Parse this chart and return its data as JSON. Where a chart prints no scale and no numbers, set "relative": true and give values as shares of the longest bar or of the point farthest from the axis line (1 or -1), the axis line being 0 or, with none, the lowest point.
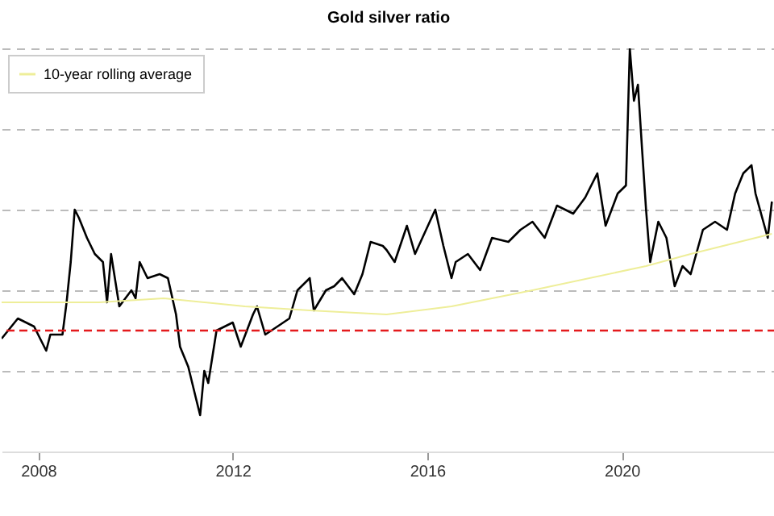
{
  "chart_data": {
    "type": "line",
    "title": "Gold silver ratio",
    "relative": true,
    "xlim": [
      "2007-04",
      "2023-03"
    ],
    "xticks": [
      "2008",
      "2012",
      "2016",
      "2020"
    ],
    "grid": "y",
    "legend": "top left",
    "line_style": "solid",
    "series": [
      {
        "color": "#000000",
        "x": [
          "2007-04",
          "2007-08",
          "2007-12",
          "2008-03",
          "2008-04",
          "2008-07",
          "2008-08",
          "2008-09",
          "2008-10",
          "2008-11",
          "2009-01",
          "2009-03",
          "2009-05",
          "2009-06",
          "2009-07",
          "2009-09",
          "2009-12",
          "2010-01",
          "2010-02",
          "2010-04",
          "2010-07",
          "2010-09",
          "2010-11",
          "2010-12",
          "2011-02",
          "2011-04",
          "2011-05",
          "2011-06",
          "2011-07",
          "2011-09",
          "2012-01",
          "2012-03",
          "2012-06",
          "2012-07",
          "2012-09",
          "2012-12",
          "2013-03",
          "2013-05",
          "2013-08",
          "2013-09",
          "2013-12",
          "2014-02",
          "2014-04",
          "2014-07",
          "2014-09",
          "2014-11",
          "2015-02",
          "2015-03",
          "2015-05",
          "2015-08",
          "2015-10",
          "2016-03",
          "2016-05",
          "2016-07",
          "2016-08",
          "2016-11",
          "2017-02",
          "2017-05",
          "2017-09",
          "2017-12",
          "2018-03",
          "2018-06",
          "2018-09",
          "2019-01",
          "2019-04",
          "2019-07",
          "2019-09",
          "2019-12",
          "2020-02",
          "2020-03",
          "2020-04",
          "2020-05",
          "2020-06",
          "2020-07",
          "2020-08",
          "2020-10",
          "2020-12",
          "2021-02",
          "2021-04",
          "2021-06",
          "2021-09",
          "2021-12",
          "2022-03",
          "2022-05",
          "2022-07",
          "2022-09",
          "2022-10",
          "2023-01",
          "2023-02"
        ],
        "values": [
          0.28,
          0.33,
          0.31,
          0.25,
          0.29,
          0.29,
          0.37,
          0.47,
          0.6,
          0.58,
          0.53,
          0.49,
          0.47,
          0.37,
          0.49,
          0.36,
          0.4,
          0.38,
          0.47,
          0.43,
          0.44,
          0.43,
          0.34,
          0.26,
          0.21,
          0.13,
          0.09,
          0.2,
          0.17,
          0.3,
          0.32,
          0.26,
          0.34,
          0.36,
          0.29,
          0.31,
          0.33,
          0.4,
          0.43,
          0.35,
          0.4,
          0.41,
          0.43,
          0.39,
          0.44,
          0.52,
          0.51,
          0.5,
          0.47,
          0.56,
          0.49,
          0.6,
          0.51,
          0.43,
          0.47,
          0.49,
          0.45,
          0.53,
          0.52,
          0.55,
          0.57,
          0.53,
          0.61,
          0.59,
          0.63,
          0.69,
          0.56,
          0.64,
          0.66,
          1.0,
          0.87,
          0.91,
          0.75,
          0.6,
          0.47,
          0.57,
          0.53,
          0.41,
          0.46,
          0.44,
          0.55,
          0.57,
          0.55,
          0.64,
          0.69,
          0.71,
          0.64,
          0.53,
          0.62
        ]
      },
      {
        "name": "10-year rolling average",
        "color": "#eeee99",
        "x": [
          "2007-04",
          "2009-04",
          "2010-08",
          "2012-04",
          "2013-08",
          "2015-03",
          "2016-07",
          "2018-03",
          "2020-07",
          "2021-06",
          "2023-02"
        ],
        "values": [
          0.37,
          0.37,
          0.38,
          0.36,
          0.35,
          0.34,
          0.36,
          0.4,
          0.46,
          0.49,
          0.54
        ]
      }
    ],
    "ref_lines": [
      {
        "axis": "y",
        "value": 0.3,
        "color": "#e41a1c",
        "line_style": "dashed"
      }
    ]
  }
}
